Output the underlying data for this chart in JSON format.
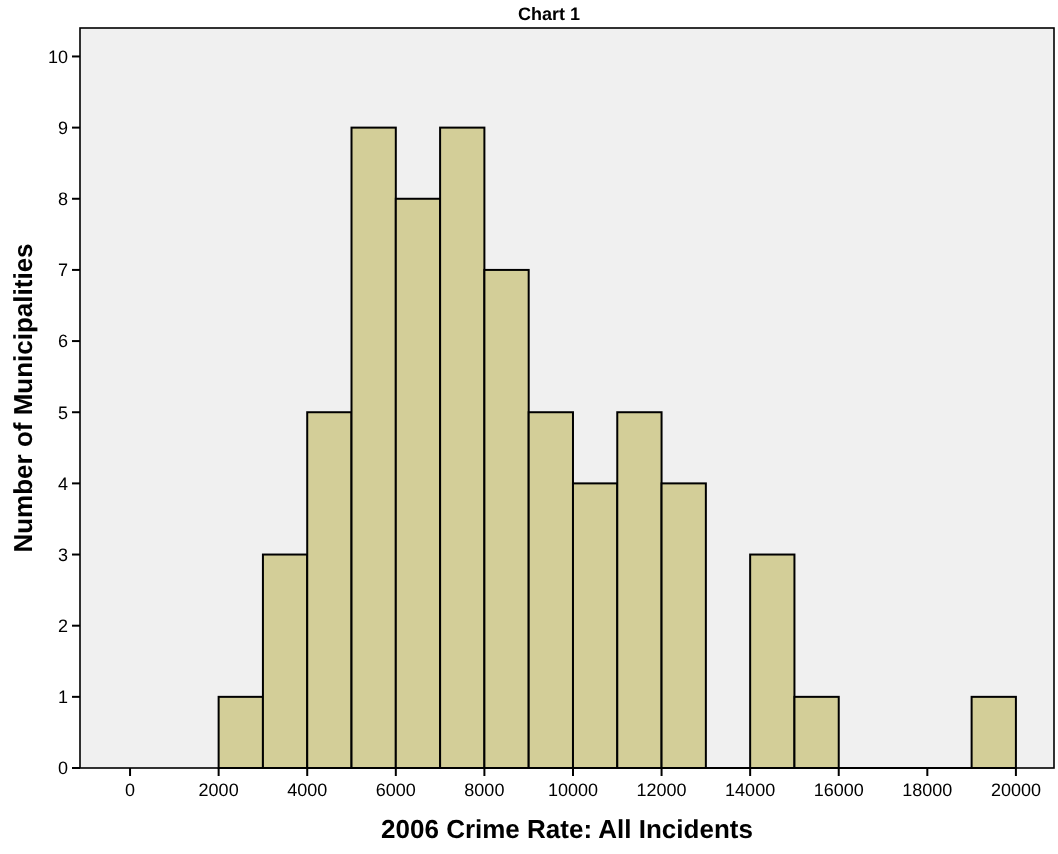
{
  "chart_data": {
    "type": "histogram",
    "title": "Chart 1",
    "xlabel": "2006 Crime Rate: All Incidents",
    "ylabel": "Number of Municipalities",
    "bins": [
      2000,
      3000,
      4000,
      5000,
      6000,
      7000,
      8000,
      9000,
      10000,
      11000,
      12000,
      13000,
      14000,
      15000,
      16000,
      17000,
      18000,
      19000,
      20000
    ],
    "values": [
      1,
      3,
      5,
      9,
      8,
      9,
      7,
      5,
      4,
      5,
      4,
      0,
      3,
      1,
      0,
      0,
      0,
      1
    ],
    "color": "#d3ce98",
    "xlim": [
      -1130,
      20860
    ],
    "xticks": [
      0,
      2000,
      4000,
      6000,
      8000,
      10000,
      12000,
      14000,
      16000,
      18000,
      20000
    ],
    "ylim": [
      0,
      10.4
    ],
    "yticks": [
      0,
      1,
      2,
      3,
      4,
      5,
      6,
      7,
      8,
      9,
      10
    ],
    "grid": false
  }
}
